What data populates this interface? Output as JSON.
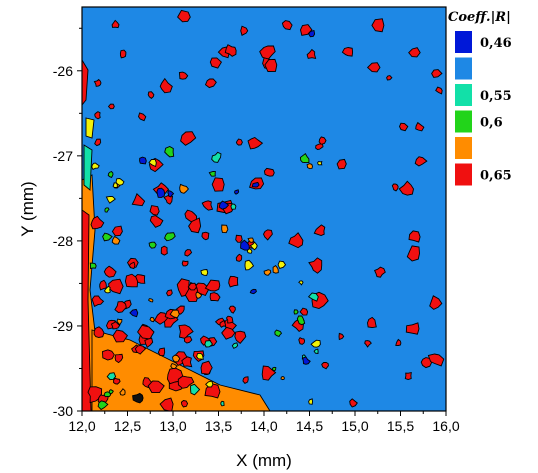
{
  "chart_data": {
    "type": "heatmap",
    "xlabel": "X (mm)",
    "ylabel": "Y (mm)",
    "xlim": [
      12.0,
      16.0
    ],
    "ylim": [
      -30.0,
      -25.25
    ],
    "x_ticks": [
      "12,0",
      "12,5",
      "13,0",
      "13,5",
      "14,0",
      "14,5",
      "15,0",
      "15,5",
      "16,0"
    ],
    "x_tick_values": [
      12.0,
      12.5,
      13.0,
      13.5,
      14.0,
      14.5,
      15.0,
      15.5,
      16.0
    ],
    "y_ticks": [
      "-26",
      "-27",
      "-28",
      "-29",
      "-30"
    ],
    "y_tick_values": [
      -26,
      -27,
      -28,
      -29,
      -30
    ],
    "background_level_color": "#1e88e5",
    "legend": {
      "title": "Coeff.|R|",
      "entries": [
        {
          "label": "0,46",
          "color": "#0018d8"
        },
        {
          "label": "",
          "color": "#1e88e5"
        },
        {
          "label": "0,55",
          "color": "#12e0a8"
        },
        {
          "label": "0,6",
          "color": "#22d41a"
        },
        {
          "label": "",
          "color": "#ff8c00"
        },
        {
          "label": "0,65",
          "color": "#f01010"
        }
      ]
    },
    "level_colors": {
      "low": "#0018d8",
      "cyan": "#12e0a8",
      "green": "#22d41a",
      "yellow": "#f2f20a",
      "orange": "#ff8c00",
      "high": "#f01010"
    }
  }
}
